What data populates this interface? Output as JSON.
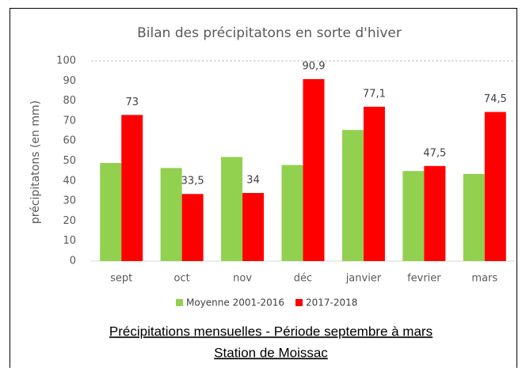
{
  "chart_data": {
    "type": "bar",
    "title": "Bilan des précipitatons en sorte d'hiver",
    "y_label": "précipitatons (en mm)",
    "categories": [
      "sept",
      "oct",
      "nov",
      "déc",
      "janvier",
      "fevrier",
      "mars"
    ],
    "series": [
      {
        "name": "Moyenne 2001-2016",
        "color": "#92d050",
        "values": [
          49,
          46.5,
          52,
          48,
          65.5,
          45,
          43.5
        ]
      },
      {
        "name": "2017-2018",
        "color": "#ff0000",
        "values": [
          73,
          33.5,
          34,
          90.9,
          77.1,
          47.5,
          74.5
        ],
        "value_labels": [
          "73",
          "33,5",
          "34",
          "90,9",
          "77,1",
          "47,5",
          "74,5"
        ]
      }
    ],
    "ylim": [
      0,
      100
    ],
    "yticks": [
      0,
      10,
      20,
      30,
      40,
      50,
      60,
      70,
      80,
      90,
      100
    ],
    "legend": "bottom",
    "caption": [
      "Précipitations mensuelles - Période septembre à mars",
      "Station de Moissac"
    ]
  }
}
